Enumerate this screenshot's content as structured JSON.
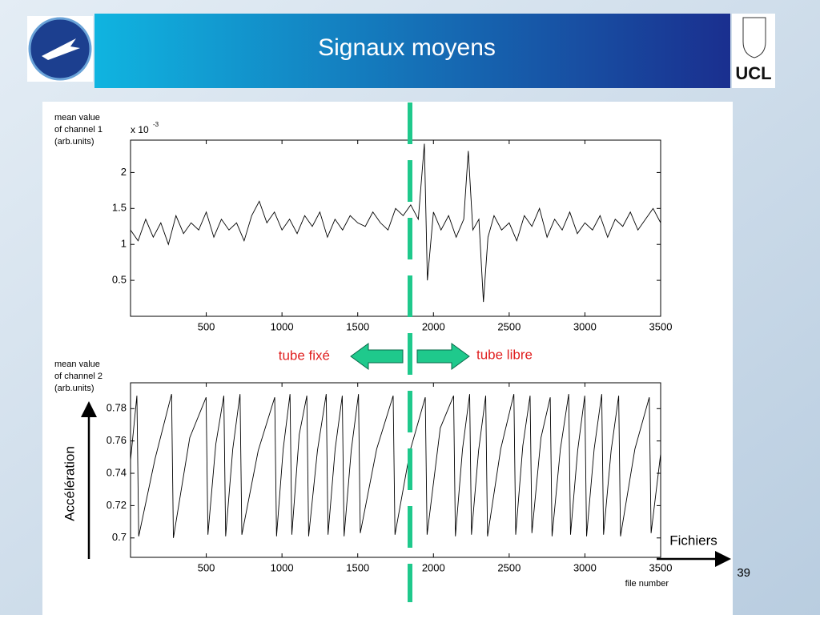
{
  "slide": {
    "title": "Signaux moyens",
    "logo_right": "UCL",
    "page_number": "39",
    "left_label": "tube fixé",
    "right_label": "tube libre",
    "y_arrow_label": "Accélération",
    "x_arrow_label": "Fichiers"
  },
  "chart_data": [
    {
      "type": "line",
      "ylabel": [
        "mean value",
        "of channel 1",
        "(arb.units)"
      ],
      "y_multiplier": "x 10",
      "y_exponent": "-3",
      "color": "#000000",
      "xlim": [
        0,
        3500
      ],
      "ylim": [
        0,
        2.45
      ],
      "xticks": [
        500,
        1000,
        1500,
        2000,
        2500,
        3000,
        3500
      ],
      "yticks": [
        0.5,
        1,
        1.5,
        2
      ],
      "x": [
        0,
        50,
        100,
        150,
        200,
        250,
        300,
        350,
        400,
        450,
        500,
        550,
        600,
        650,
        700,
        750,
        800,
        850,
        900,
        950,
        1000,
        1050,
        1100,
        1150,
        1200,
        1250,
        1300,
        1350,
        1400,
        1450,
        1500,
        1550,
        1600,
        1650,
        1700,
        1750,
        1800,
        1850,
        1900,
        1940,
        1960,
        2000,
        2050,
        2100,
        2150,
        2200,
        2230,
        2260,
        2300,
        2330,
        2360,
        2400,
        2450,
        2500,
        2550,
        2600,
        2650,
        2700,
        2750,
        2800,
        2850,
        2900,
        2950,
        3000,
        3050,
        3100,
        3150,
        3200,
        3250,
        3300,
        3350,
        3400,
        3450,
        3500
      ],
      "y": [
        1.2,
        1.05,
        1.35,
        1.1,
        1.3,
        1.0,
        1.4,
        1.15,
        1.3,
        1.2,
        1.45,
        1.1,
        1.35,
        1.2,
        1.3,
        1.05,
        1.4,
        1.6,
        1.3,
        1.45,
        1.2,
        1.35,
        1.15,
        1.4,
        1.25,
        1.45,
        1.1,
        1.35,
        1.2,
        1.4,
        1.3,
        1.25,
        1.45,
        1.3,
        1.2,
        1.5,
        1.4,
        1.55,
        1.35,
        2.4,
        0.5,
        1.45,
        1.2,
        1.4,
        1.1,
        1.35,
        2.3,
        1.2,
        1.35,
        0.2,
        1.1,
        1.4,
        1.2,
        1.3,
        1.05,
        1.4,
        1.25,
        1.5,
        1.1,
        1.35,
        1.2,
        1.45,
        1.15,
        1.3,
        1.2,
        1.4,
        1.1,
        1.35,
        1.25,
        1.45,
        1.2,
        1.35,
        1.5,
        1.3
      ]
    },
    {
      "type": "line",
      "ylabel": [
        "mean value",
        "of channel 2",
        "(arb.units)"
      ],
      "xlabel": "file number",
      "color": "#000000",
      "xlim": [
        0,
        3500
      ],
      "ylim": [
        0.688,
        0.796
      ],
      "xticks": [
        500,
        1000,
        1500,
        2000,
        2500,
        3000,
        3500
      ],
      "yticks": [
        0.7,
        0.72,
        0.74,
        0.76,
        0.78
      ],
      "x": [
        0,
        42,
        54,
        162,
        271,
        283,
        391,
        499,
        511,
        563,
        616,
        628,
        675,
        723,
        735,
        843,
        952,
        964,
        1008,
        1053,
        1065,
        1114,
        1164,
        1176,
        1234,
        1292,
        1304,
        1351,
        1398,
        1410,
        1457,
        1505,
        1517,
        1625,
        1734,
        1746,
        1846,
        1946,
        1958,
        2045,
        2133,
        2145,
        2192,
        2239,
        2251,
        2298,
        2345,
        2357,
        2444,
        2531,
        2543,
        2590,
        2638,
        2650,
        2710,
        2771,
        2783,
        2838,
        2893,
        2905,
        2952,
        2999,
        3011,
        3061,
        3111,
        3123,
        3173,
        3223,
        3235,
        3330,
        3425,
        3437,
        3500
      ],
      "y": [
        0.748,
        0.788,
        0.701,
        0.749,
        0.789,
        0.7,
        0.762,
        0.787,
        0.702,
        0.758,
        0.788,
        0.701,
        0.755,
        0.789,
        0.702,
        0.754,
        0.787,
        0.701,
        0.755,
        0.789,
        0.702,
        0.764,
        0.788,
        0.701,
        0.754,
        0.789,
        0.702,
        0.755,
        0.788,
        0.701,
        0.754,
        0.789,
        0.703,
        0.755,
        0.788,
        0.702,
        0.754,
        0.787,
        0.702,
        0.768,
        0.788,
        0.701,
        0.755,
        0.789,
        0.702,
        0.754,
        0.788,
        0.701,
        0.755,
        0.789,
        0.702,
        0.757,
        0.788,
        0.703,
        0.762,
        0.787,
        0.701,
        0.755,
        0.789,
        0.702,
        0.754,
        0.788,
        0.701,
        0.755,
        0.789,
        0.702,
        0.754,
        0.788,
        0.701,
        0.755,
        0.787,
        0.703,
        0.752
      ]
    }
  ]
}
